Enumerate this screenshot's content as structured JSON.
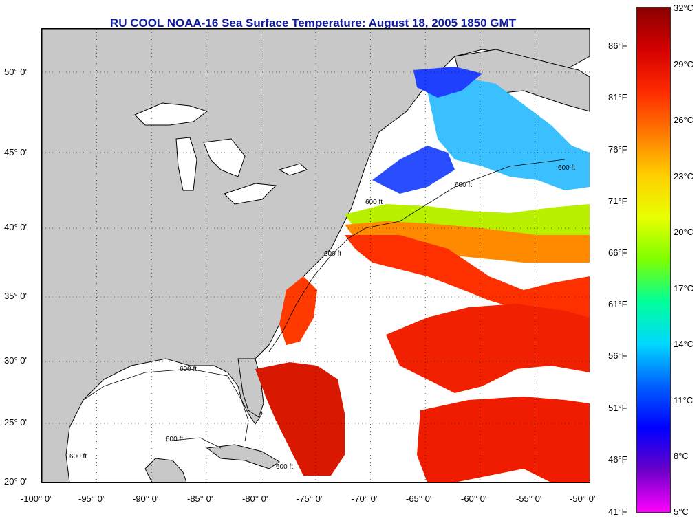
{
  "title": "RU COOL  NOAA-16  Sea Surface Temperature:  August 18, 2005 1850 GMT",
  "map": {
    "lon_range": [
      -100,
      -50
    ],
    "lat_range": [
      20,
      52
    ],
    "grid": true,
    "land_color": "#c8c8c8",
    "cloud_color": "#ffffff"
  },
  "x_ticks": [
    "-100° 0'",
    "-95° 0'",
    "-90° 0'",
    "-85° 0'",
    "-80° 0'",
    "-75° 0'",
    "-70° 0'",
    "-65° 0'",
    "-60° 0'",
    "-55° 0'",
    "-50° 0'"
  ],
  "y_ticks": [
    "50° 0'",
    "45° 0'",
    "40° 0'",
    "35° 0'",
    "30° 0'",
    "25° 0'",
    "20° 0'"
  ],
  "contour_labels": [
    "600 ft",
    "600 ft",
    "600 ft",
    "600 ft",
    "600 ft",
    "600 ft",
    "600 ft",
    "600 ft"
  ],
  "colorbar": {
    "celsius": [
      "32°C",
      "29°C",
      "26°C",
      "23°C",
      "20°C",
      "17°C",
      "14°C",
      "11°C",
      "8°C",
      "5°C"
    ],
    "fahrenheit": [
      "86°F",
      "81°F",
      "76°F",
      "71°F",
      "66°F",
      "61°F",
      "56°F",
      "51°F",
      "46°F",
      "41°F"
    ],
    "stops": [
      "#8b0000",
      "#d40000",
      "#ff2a00",
      "#ff7a00",
      "#ffd000",
      "#e8ff00",
      "#7dff00",
      "#00ff9a",
      "#00d8ff",
      "#0060ff",
      "#0000ff",
      "#6a00c8",
      "#ff00ff"
    ]
  }
}
